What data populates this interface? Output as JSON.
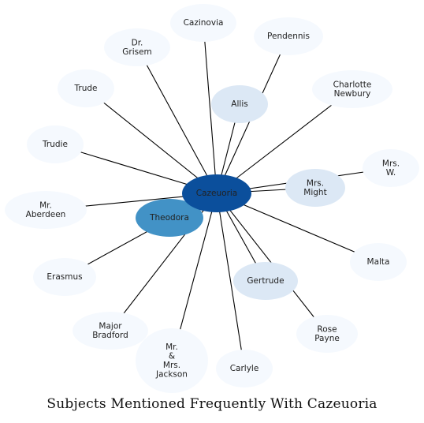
{
  "title": "Subjects Mentioned Frequently With Cazeuoria",
  "center": {
    "label": "Cazeuoria",
    "color": "#0b4f9c"
  },
  "nodes": [
    {
      "id": "cazinovia",
      "lines": [
        "Cazinovia"
      ],
      "color": "#f5f9fe"
    },
    {
      "id": "dr-grisem",
      "lines": [
        "Dr.",
        "Grisem"
      ],
      "color": "#f5f9fe"
    },
    {
      "id": "pendennis",
      "lines": [
        "Pendennis"
      ],
      "color": "#f5f9fe"
    },
    {
      "id": "trude",
      "lines": [
        "Trude"
      ],
      "color": "#f5f9fe"
    },
    {
      "id": "allis",
      "lines": [
        "Allis"
      ],
      "color": "#dce8f5"
    },
    {
      "id": "charlotte-newbury",
      "lines": [
        "Charlotte",
        "Newbury"
      ],
      "color": "#f5f9fe"
    },
    {
      "id": "trudie",
      "lines": [
        "Trudie"
      ],
      "color": "#f5f9fe"
    },
    {
      "id": "mrs-w",
      "lines": [
        "Mrs.",
        "W."
      ],
      "color": "#f5f9fe"
    },
    {
      "id": "mrs-might",
      "lines": [
        "Mrs.",
        "Might"
      ],
      "color": "#dce8f5"
    },
    {
      "id": "mr-aberdeen",
      "lines": [
        "Mr.",
        "Aberdeen"
      ],
      "color": "#f5f9fe"
    },
    {
      "id": "theodora",
      "lines": [
        "Theodora"
      ],
      "color": "#4292c6"
    },
    {
      "id": "malta",
      "lines": [
        "Malta"
      ],
      "color": "#f5f9fe"
    },
    {
      "id": "erasmus",
      "lines": [
        "Erasmus"
      ],
      "color": "#f5f9fe"
    },
    {
      "id": "gertrude",
      "lines": [
        "Gertrude"
      ],
      "color": "#dce8f5"
    },
    {
      "id": "major-bradford",
      "lines": [
        "Major",
        "Bradford"
      ],
      "color": "#f5f9fe"
    },
    {
      "id": "rose-payne",
      "lines": [
        "Rose",
        "Payne"
      ],
      "color": "#f5f9fe"
    },
    {
      "id": "mr-mrs-jackson",
      "lines": [
        "Mr.",
        "&",
        "Mrs.",
        "Jackson"
      ],
      "color": "#f5f9fe"
    },
    {
      "id": "carlyle",
      "lines": [
        "Carlyle"
      ],
      "color": "#f5f9fe"
    }
  ]
}
